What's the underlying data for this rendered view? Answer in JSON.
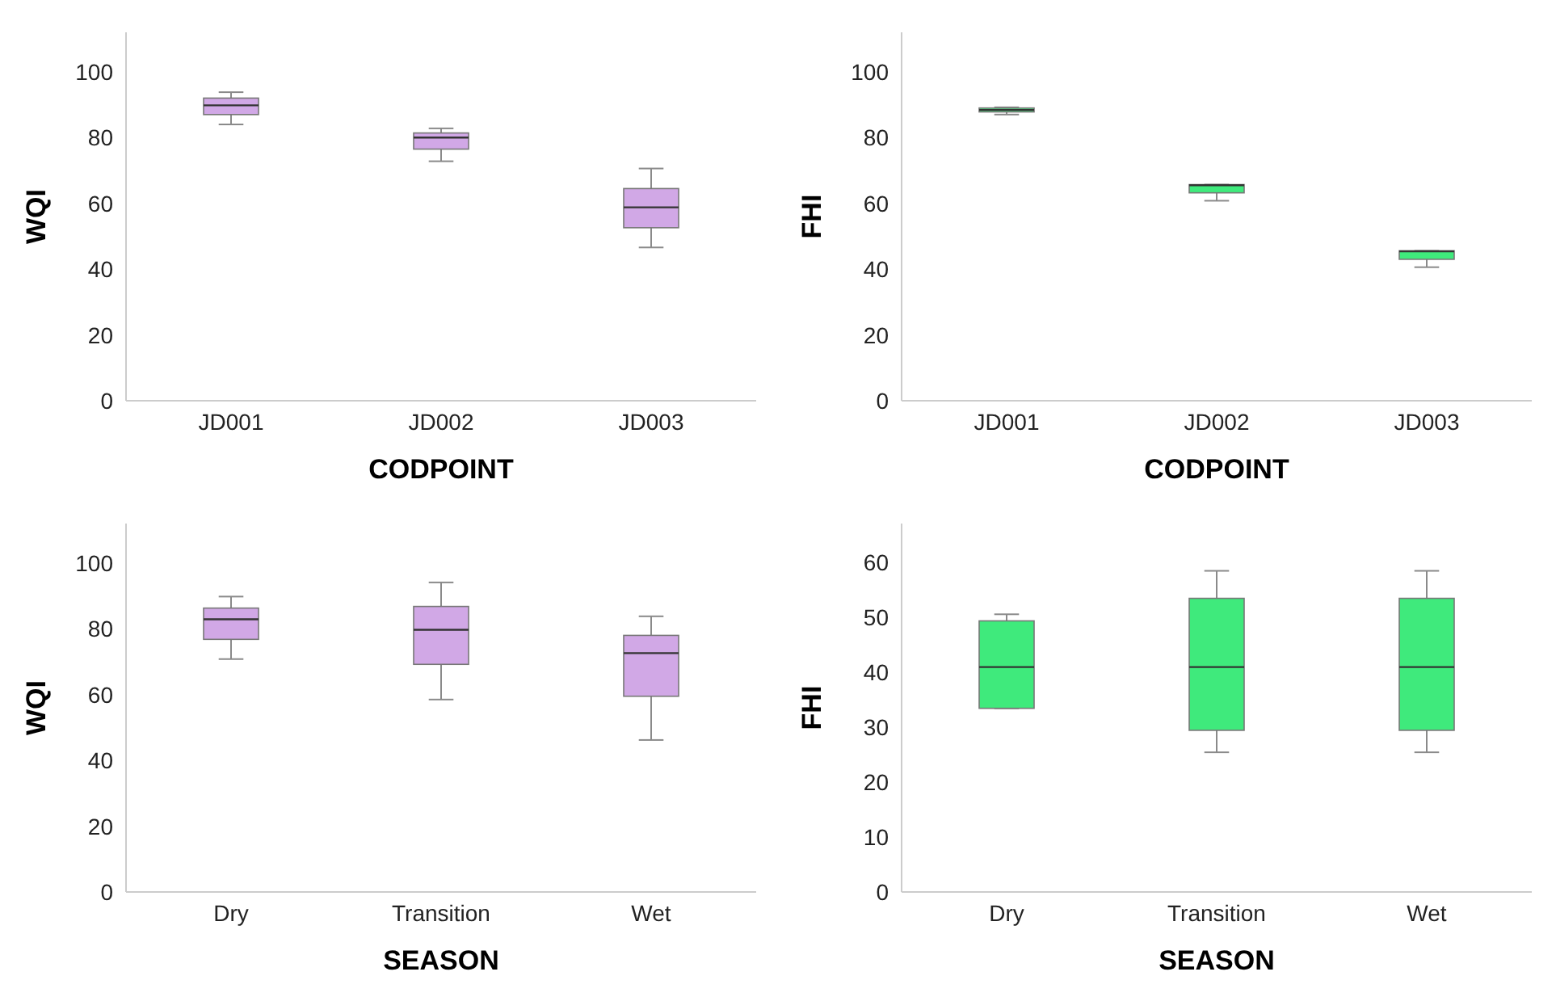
{
  "chart_data": [
    {
      "type": "box",
      "xlabel": "CODPOINT",
      "ylabel": "WQI",
      "categories": [
        "JD001",
        "JD002",
        "JD003"
      ],
      "color": "#d1a8e6",
      "ylim": [
        0,
        112
      ],
      "yticks": [
        0,
        20,
        40,
        60,
        80,
        100
      ],
      "boxes": [
        {
          "low": 84,
          "q1": 87,
          "median": 89.8,
          "q3": 92,
          "high": 93.8
        },
        {
          "low": 72.8,
          "q1": 76.5,
          "median": 80,
          "q3": 81.4,
          "high": 82.8
        },
        {
          "low": 46.6,
          "q1": 52.6,
          "median": 58.8,
          "q3": 64.5,
          "high": 70.6
        }
      ]
    },
    {
      "type": "box",
      "xlabel": "CODPOINT",
      "ylabel": "FHI",
      "categories": [
        "JD001",
        "JD002",
        "JD003"
      ],
      "color": "#3fea7c",
      "ylim": [
        0,
        112
      ],
      "yticks": [
        0,
        20,
        40,
        60,
        80,
        100
      ],
      "boxes": [
        {
          "low": 87,
          "q1": 87.8,
          "median": 88.4,
          "q3": 89,
          "high": 89.2
        },
        {
          "low": 60.8,
          "q1": 63.2,
          "median": 65.5,
          "q3": 65.7,
          "high": 65.7
        },
        {
          "low": 40.6,
          "q1": 43,
          "median": 45.4,
          "q3": 45.6,
          "high": 45.6
        }
      ]
    },
    {
      "type": "box",
      "xlabel": "SEASON",
      "ylabel": "WQI",
      "categories": [
        "Dry",
        "Transition",
        "Wet"
      ],
      "color": "#d1a8e6",
      "ylim": [
        0,
        112
      ],
      "yticks": [
        0,
        20,
        40,
        60,
        80,
        100
      ],
      "boxes": [
        {
          "low": 70.8,
          "q1": 76.8,
          "median": 82.9,
          "q3": 86.3,
          "high": 89.8
        },
        {
          "low": 58.5,
          "q1": 69.2,
          "median": 79.7,
          "q3": 86.8,
          "high": 94.1
        },
        {
          "low": 46.2,
          "q1": 59.5,
          "median": 72.6,
          "q3": 78,
          "high": 83.8
        }
      ]
    },
    {
      "type": "box",
      "xlabel": "SEASON",
      "ylabel": "FHI",
      "categories": [
        "Dry",
        "Transition",
        "Wet"
      ],
      "color": "#3fea7c",
      "ylim": [
        0,
        67
      ],
      "yticks": [
        0,
        10,
        20,
        30,
        40,
        50,
        60
      ],
      "boxes": [
        {
          "low": 33.4,
          "q1": 33.4,
          "median": 40.9,
          "q3": 49.3,
          "high": 50.5
        },
        {
          "low": 25.4,
          "q1": 29.4,
          "median": 40.9,
          "q3": 53.4,
          "high": 58.4
        },
        {
          "low": 25.4,
          "q1": 29.4,
          "median": 40.9,
          "q3": 53.4,
          "high": 58.4
        }
      ]
    }
  ]
}
